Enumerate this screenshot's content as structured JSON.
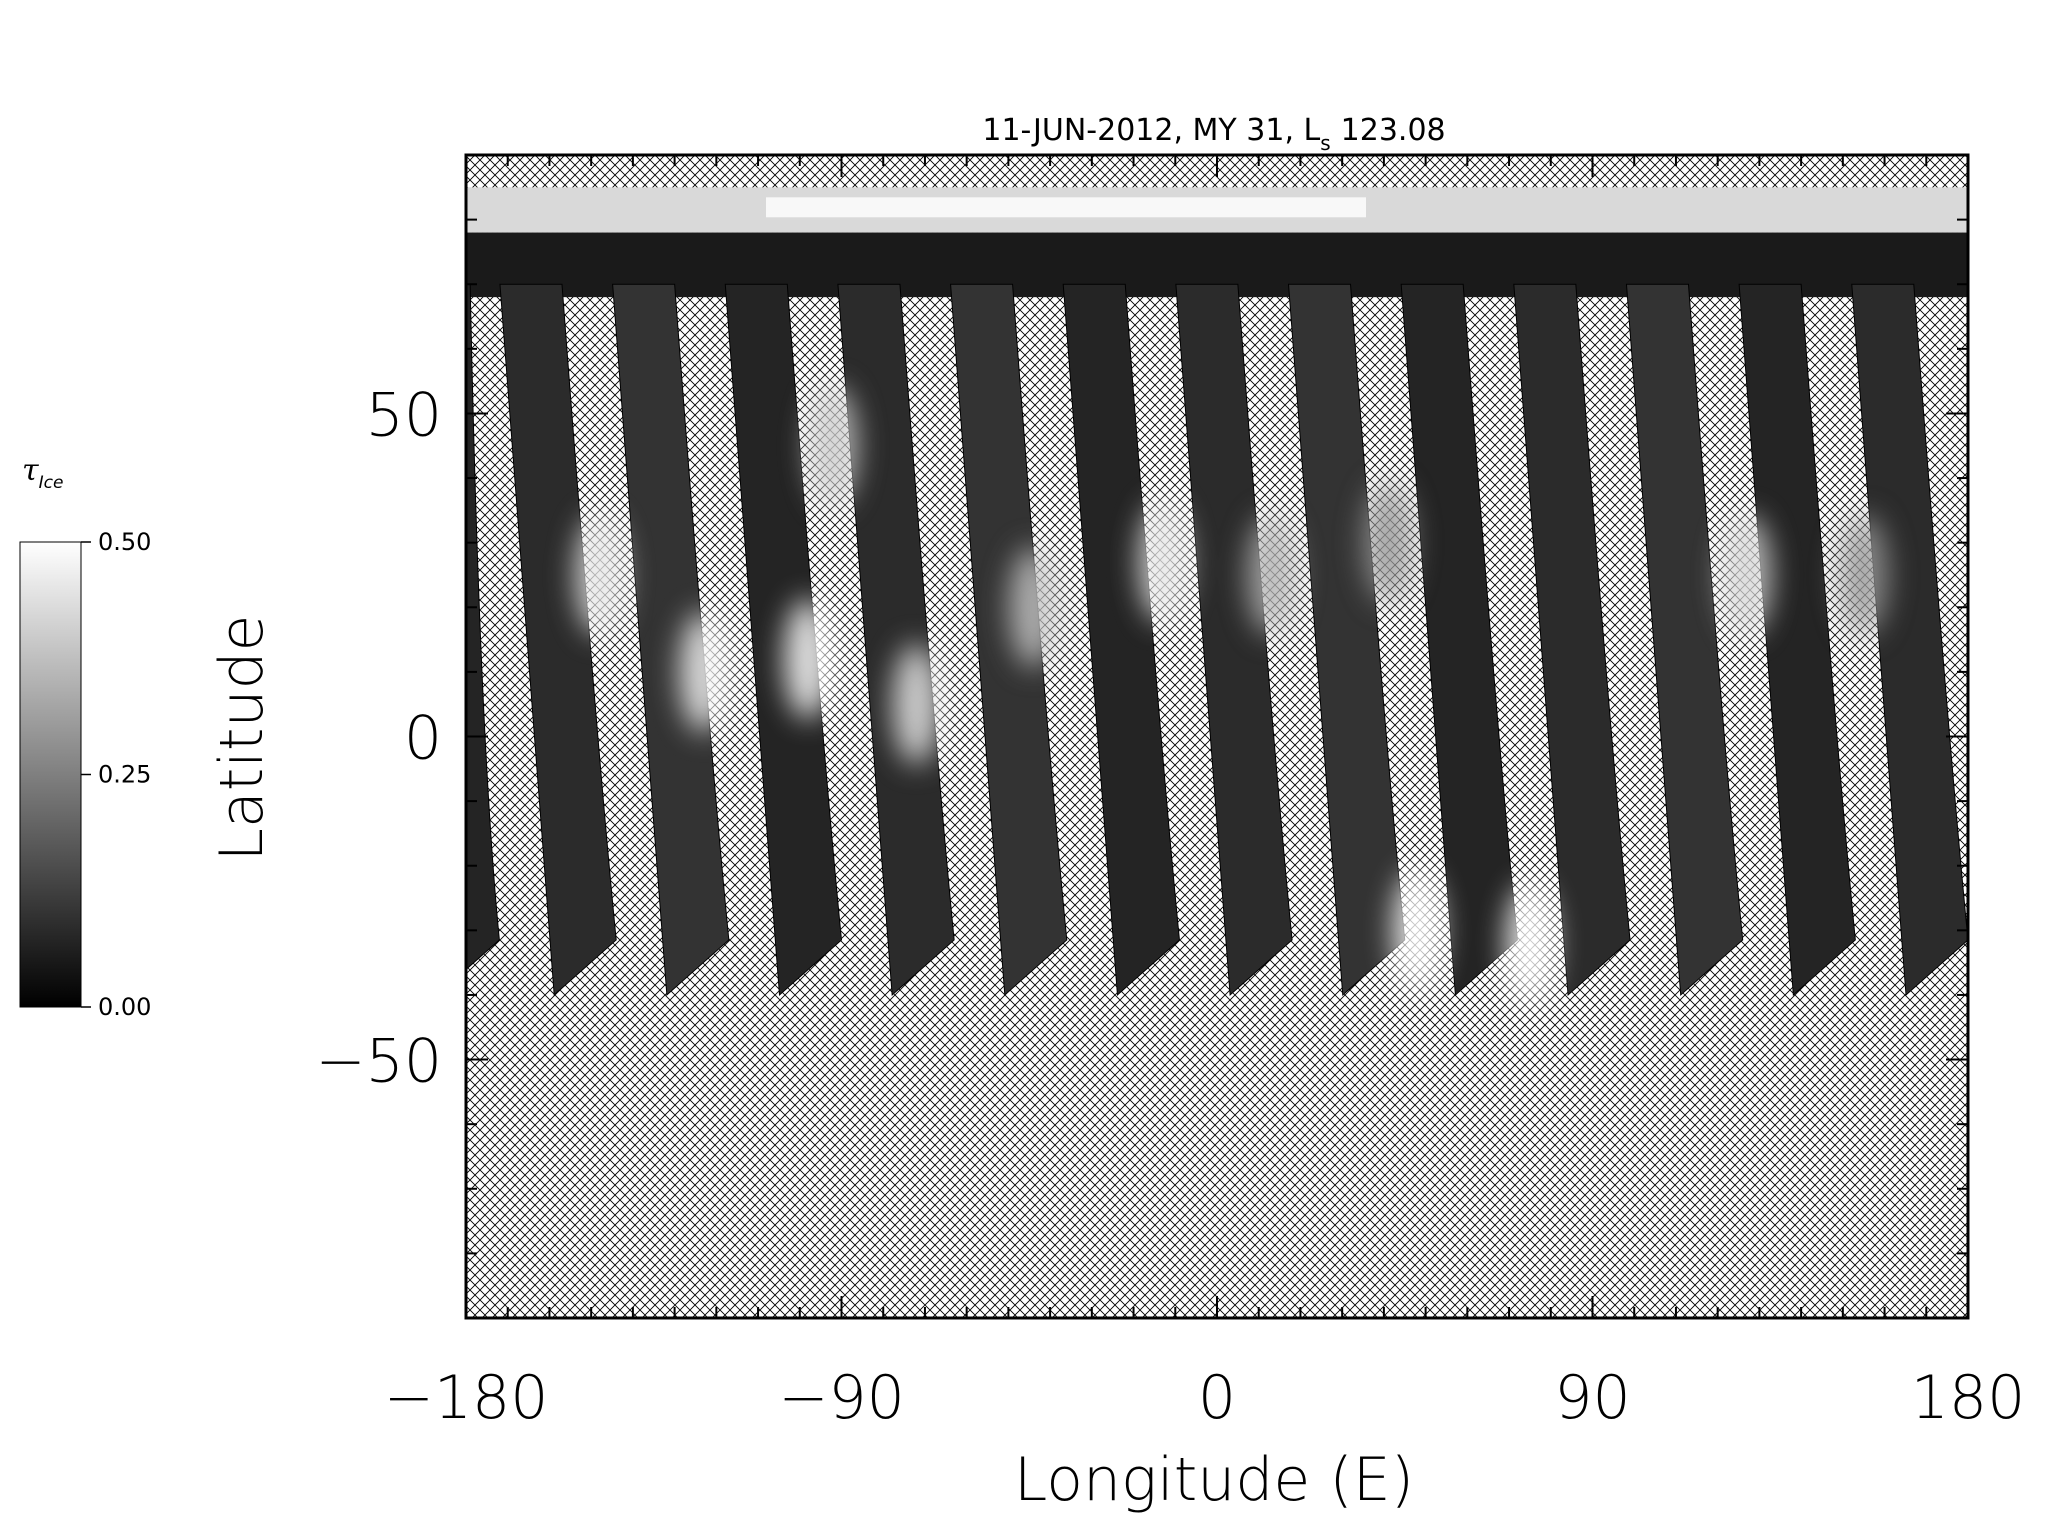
{
  "chart_data": {
    "type": "heatmap",
    "title": "11-JUN-2012, MY 31,  L",
    "title_subscript": "s",
    "title_value": "123.08",
    "xlabel": "Longitude (E)",
    "ylabel": "Latitude",
    "xlim": [
      -180,
      180
    ],
    "ylim": [
      -90,
      90
    ],
    "x_ticks": [
      -180,
      -90,
      0,
      90,
      180
    ],
    "x_tick_labels": [
      "−180",
      "−90",
      "0",
      "90",
      "180"
    ],
    "y_ticks": [
      -50,
      0,
      50
    ],
    "y_tick_labels": [
      "−50",
      "0",
      "50"
    ],
    "x_minor_step": 10,
    "y_minor_step": 10,
    "missing_data": "cross-hatch",
    "colormap": "grayscale",
    "colorbar": {
      "title": "τ",
      "title_subscript": "Ice",
      "min": 0.0,
      "max": 0.5,
      "ticks": [
        0.0,
        0.25,
        0.5
      ],
      "tick_labels": [
        "0.00",
        "0.25",
        "0.50"
      ]
    },
    "polar_cap": {
      "lat_min": 78,
      "lat_max": 85,
      "value": 0.5
    },
    "north_band": {
      "lat_min": 68,
      "lat_max": 78,
      "value": 0.05
    },
    "swaths": [
      {
        "lon_south": -172,
        "lon_north": -179,
        "lat_south": -40,
        "lat_top": 70
      },
      {
        "lon_south": -144,
        "lon_north": -157,
        "lat_south": -40,
        "lat_top": 70
      },
      {
        "lon_south": -117,
        "lon_north": -130,
        "lat_south": -40,
        "lat_top": 70
      },
      {
        "lon_south": -90,
        "lon_north": -103,
        "lat_south": -40,
        "lat_top": 70
      },
      {
        "lon_south": -63,
        "lon_north": -76,
        "lat_south": -40,
        "lat_top": 70
      },
      {
        "lon_south": -36,
        "lon_north": -49,
        "lat_south": -40,
        "lat_top": 70
      },
      {
        "lon_south": -9,
        "lon_north": -22,
        "lat_south": -40,
        "lat_top": 70
      },
      {
        "lon_south": 18,
        "lon_north": 5,
        "lat_south": -40,
        "lat_top": 70
      },
      {
        "lon_south": 45,
        "lon_north": 32,
        "lat_south": -40,
        "lat_top": 70
      },
      {
        "lon_south": 72,
        "lon_north": 59,
        "lat_south": -40,
        "lat_top": 70
      },
      {
        "lon_south": 99,
        "lon_north": 86,
        "lat_south": -40,
        "lat_top": 70
      },
      {
        "lon_south": 126,
        "lon_north": 113,
        "lat_south": -40,
        "lat_top": 70
      },
      {
        "lon_south": 153,
        "lon_north": 140,
        "lat_south": -40,
        "lat_top": 70
      },
      {
        "lon_south": 180,
        "lon_north": 167,
        "lat_south": -40,
        "lat_top": 70
      }
    ],
    "cloud_features": [
      {
        "lon": -148,
        "lat": 25,
        "value": 0.45
      },
      {
        "lon": -123,
        "lat": 10,
        "value": 0.48
      },
      {
        "lon": -98,
        "lat": 12,
        "value": 0.5
      },
      {
        "lon": -92,
        "lat": 45,
        "value": 0.4
      },
      {
        "lon": -72,
        "lat": 5,
        "value": 0.45
      },
      {
        "lon": -44,
        "lat": 20,
        "value": 0.38
      },
      {
        "lon": -13,
        "lat": 27,
        "value": 0.45
      },
      {
        "lon": 13,
        "lat": 25,
        "value": 0.35
      },
      {
        "lon": 41,
        "lat": 30,
        "value": 0.3
      },
      {
        "lon": 48,
        "lat": -30,
        "value": 0.5
      },
      {
        "lon": 75,
        "lat": -32,
        "value": 0.5
      },
      {
        "lon": 127,
        "lat": 25,
        "value": 0.42
      },
      {
        "lon": 155,
        "lat": 25,
        "value": 0.3
      }
    ]
  }
}
